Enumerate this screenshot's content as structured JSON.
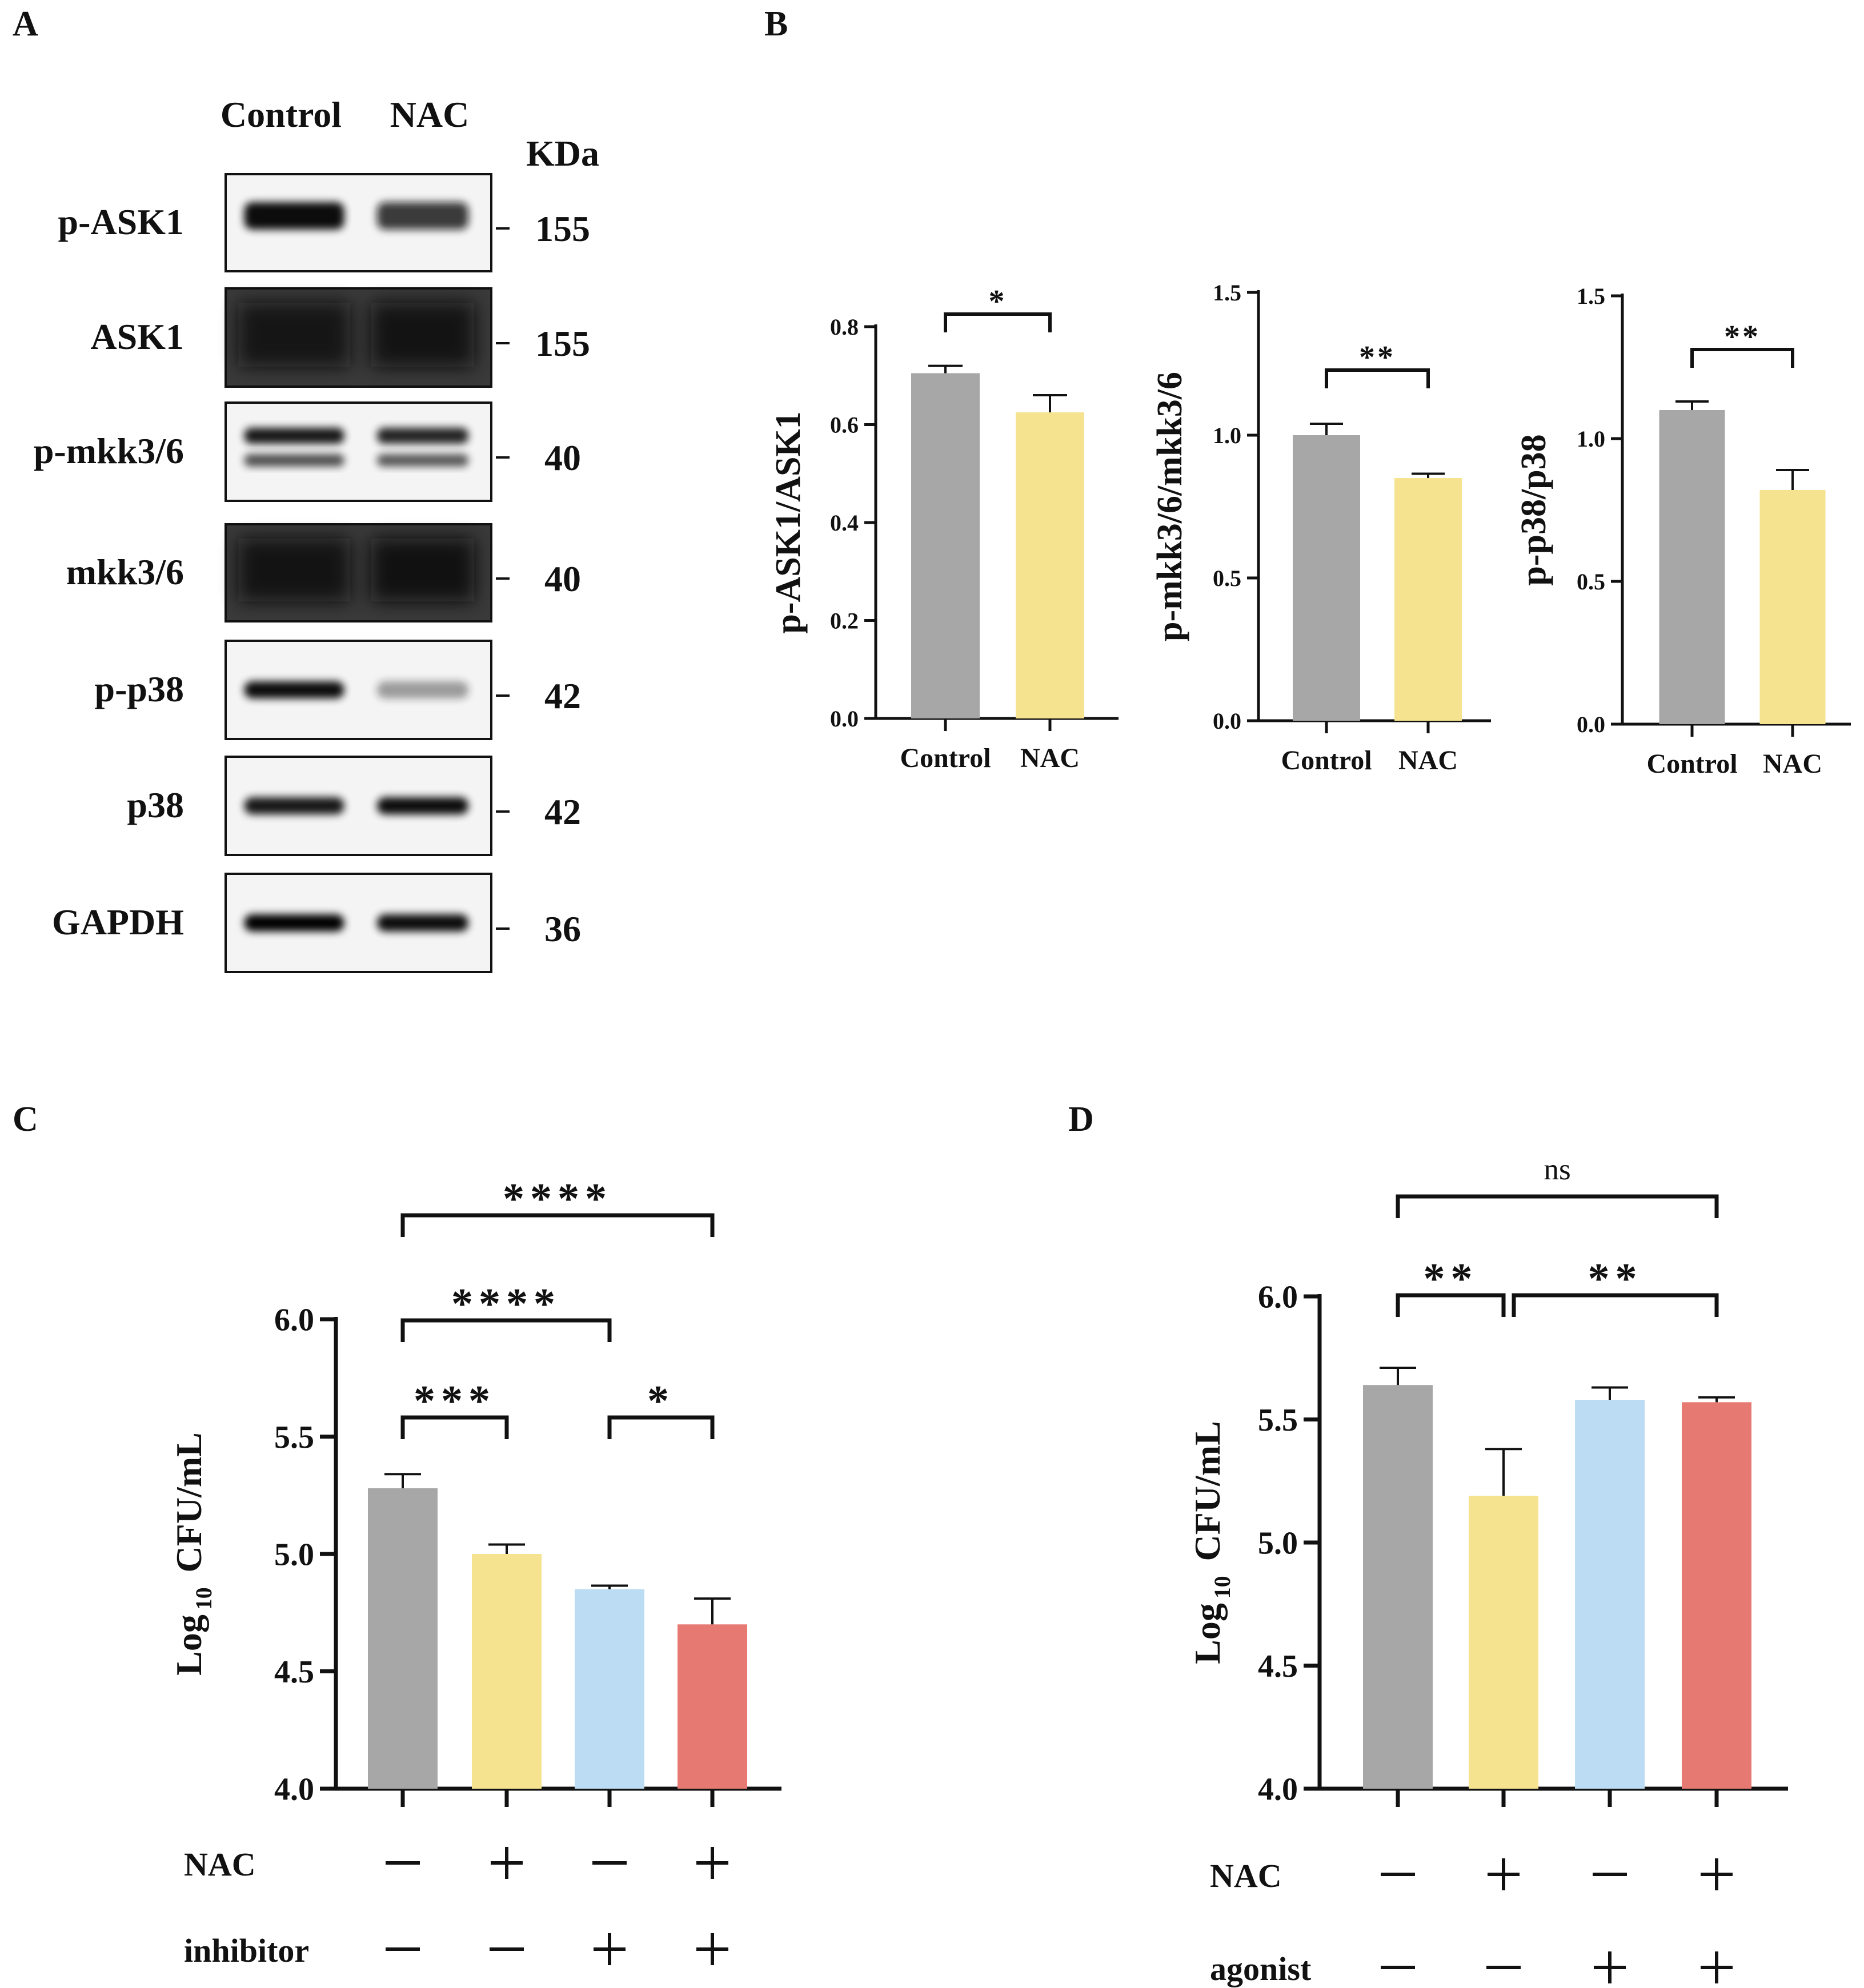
{
  "panels": {
    "A": "A",
    "B": "B",
    "C": "C",
    "D": "D"
  },
  "western_blot": {
    "lanes": [
      "Control",
      "NAC"
    ],
    "unit": "KDa",
    "bands": [
      {
        "label": "p-ASK1",
        "kda": "155",
        "intensity": [
          0.95,
          0.8
        ],
        "style": "dark"
      },
      {
        "label": "ASK1",
        "kda": "155",
        "intensity": [
          0.8,
          0.85
        ],
        "style": "smear"
      },
      {
        "label": "p-mkk3/6",
        "kda": "40",
        "intensity": [
          0.9,
          0.85
        ],
        "style": "double"
      },
      {
        "label": "mkk3/6",
        "kda": "40",
        "intensity": [
          0.85,
          0.9
        ],
        "style": "smear"
      },
      {
        "label": "p-p38",
        "kda": "42",
        "intensity": [
          0.95,
          0.4
        ],
        "style": "single"
      },
      {
        "label": "p38",
        "kda": "42",
        "intensity": [
          0.9,
          0.95
        ],
        "style": "single"
      },
      {
        "label": "GAPDH",
        "kda": "36",
        "intensity": [
          1.0,
          0.95
        ],
        "style": "single"
      }
    ]
  },
  "colors": {
    "control": "#a7a7a7",
    "nac": "#f5e38f",
    "third": "#bcdcf4",
    "fourth": "#e67a73"
  },
  "chart_data": [
    {
      "type": "bar",
      "panel": "B",
      "categories": [
        "Control",
        "NAC"
      ],
      "values": [
        0.705,
        0.625
      ],
      "errors": [
        0.015,
        0.035
      ],
      "ylabel": "p-ASK1/ASK1",
      "ylim": [
        0,
        0.8
      ],
      "yticks": [
        "0.0",
        "0.2",
        "0.4",
        "0.6",
        "0.8"
      ],
      "comparisons": [
        {
          "from": 0,
          "to": 1,
          "label": "*"
        }
      ]
    },
    {
      "type": "bar",
      "panel": "B",
      "categories": [
        "Control",
        "NAC"
      ],
      "values": [
        1.0,
        0.85
      ],
      "errors": [
        0.04,
        0.015
      ],
      "ylabel": "p-mkk3/6/mkk3/6",
      "ylim": [
        0,
        1.5
      ],
      "yticks": [
        "0.0",
        "0.5",
        "1.0",
        "1.5"
      ],
      "comparisons": [
        {
          "from": 0,
          "to": 1,
          "label": "**"
        }
      ]
    },
    {
      "type": "bar",
      "panel": "B",
      "categories": [
        "Control",
        "NAC"
      ],
      "values": [
        1.1,
        0.82
      ],
      "errors": [
        0.03,
        0.07
      ],
      "ylabel": "p-p38/p38",
      "ylim": [
        0,
        1.5
      ],
      "yticks": [
        "0.0",
        "0.5",
        "1.0",
        "1.5"
      ],
      "comparisons": [
        {
          "from": 0,
          "to": 1,
          "label": "**"
        }
      ]
    },
    {
      "type": "bar",
      "panel": "C",
      "values": [
        5.28,
        5.0,
        4.85,
        4.7
      ],
      "errors": [
        0.06,
        0.04,
        0.015,
        0.11
      ],
      "ylabel_main": "Log",
      "ylabel_sub": "10",
      "ylabel_unit": "CFU/mL",
      "ylim": [
        4.0,
        6.0
      ],
      "yticks": [
        "4.0",
        "4.5",
        "5.0",
        "5.5",
        "6.0"
      ],
      "conditions": [
        {
          "label": "NAC",
          "signs": [
            "−",
            "+",
            "−",
            "+"
          ]
        },
        {
          "label": "inhibitor",
          "signs": [
            "−",
            "−",
            "+",
            "+"
          ]
        }
      ],
      "comparisons": [
        {
          "from": 0,
          "to": 1,
          "label": "***"
        },
        {
          "from": 2,
          "to": 3,
          "label": "*"
        },
        {
          "from": 0,
          "to": 2,
          "label": "****"
        },
        {
          "from": 0,
          "to": 3,
          "label": "****"
        }
      ]
    },
    {
      "type": "bar",
      "panel": "D",
      "values": [
        5.64,
        5.19,
        5.58,
        5.57
      ],
      "errors": [
        0.07,
        0.19,
        0.05,
        0.02
      ],
      "ylabel_main": "Log",
      "ylabel_sub": "10",
      "ylabel_unit": "CFU/mL",
      "ylim": [
        4.0,
        6.0
      ],
      "yticks": [
        "4.0",
        "4.5",
        "5.0",
        "5.5",
        "6.0"
      ],
      "conditions": [
        {
          "label": "NAC",
          "signs": [
            "−",
            "+",
            "−",
            "+"
          ]
        },
        {
          "label": "agonist",
          "signs": [
            "−",
            "−",
            "+",
            "+"
          ]
        }
      ],
      "comparisons": [
        {
          "from": 0,
          "to": 1,
          "label": "**"
        },
        {
          "from": 1,
          "to": 3,
          "label": "**"
        },
        {
          "from": 0,
          "to": 3,
          "label": "ns"
        }
      ]
    }
  ]
}
